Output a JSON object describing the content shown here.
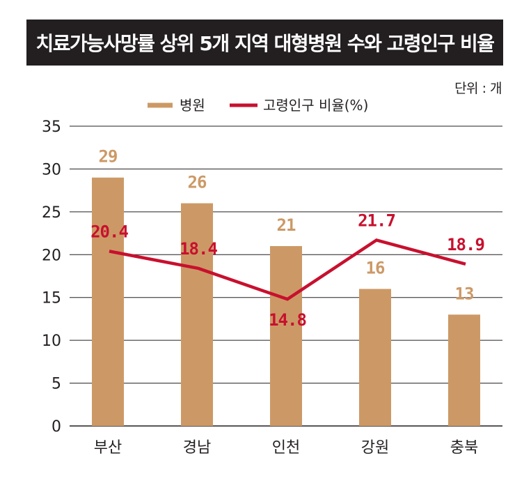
{
  "title": "치료가능사망률 상위 5개 지역 대형병원 수와 고령인구 비율",
  "unit": "단위 : 개",
  "colors": {
    "bar": "#cc9966",
    "line": "#c8102e",
    "grid": "#231f20",
    "title_bg": "#231f20"
  },
  "chart_data": {
    "type": "bar",
    "categories": [
      "부산",
      "경남",
      "인천",
      "강원",
      "충북"
    ],
    "ylim": [
      0,
      35
    ],
    "yticks": [
      0,
      5,
      10,
      15,
      20,
      25,
      30,
      35
    ],
    "grid": true,
    "legend_position": "top-center",
    "series": [
      {
        "name": "병원",
        "type": "bar",
        "values": [
          29,
          26,
          21,
          16,
          13
        ],
        "labels": [
          "29",
          "26",
          "21",
          "16",
          "13"
        ]
      },
      {
        "name": "고령인구 비율(%)",
        "type": "line",
        "values": [
          20.4,
          18.4,
          14.8,
          21.7,
          18.9
        ],
        "labels": [
          "20.4",
          "18.4",
          "14.8",
          "21.7",
          "18.9"
        ]
      }
    ]
  }
}
